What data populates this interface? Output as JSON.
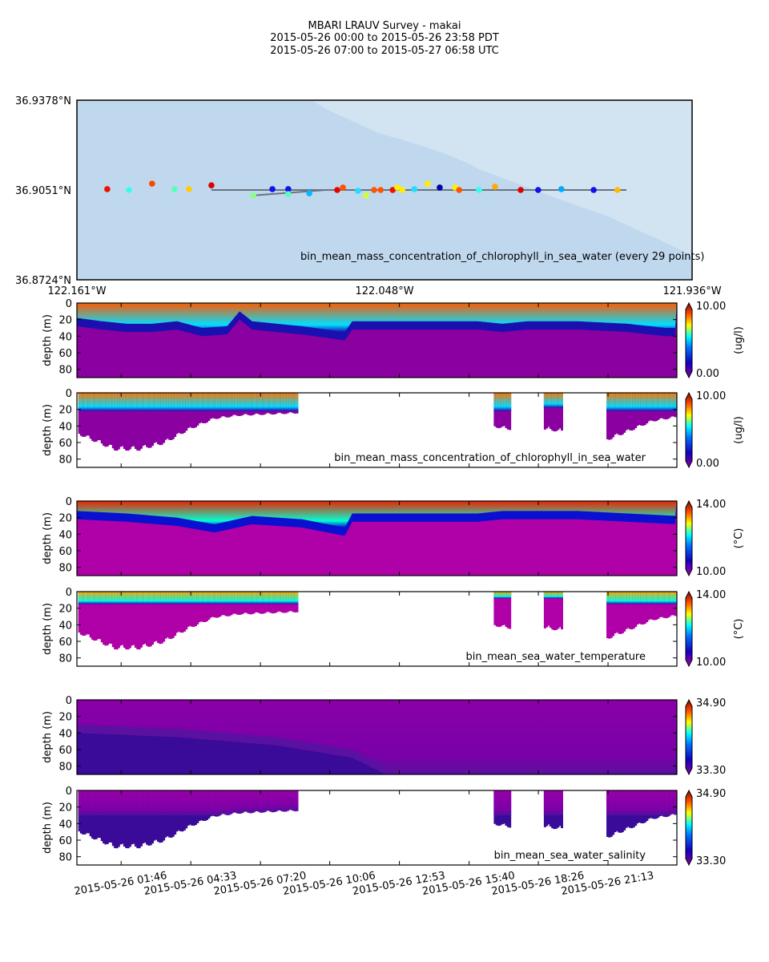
{
  "title": {
    "line1": "MBARI LRAUV Survey - makai",
    "line2": "2015-05-26 00:00  to  2015-05-26 23:58 PDT",
    "line3": "2015-05-26 07:00  to  2015-05-27 06:58 UTC"
  },
  "chart_data": [
    {
      "type": "scatter",
      "name": "map",
      "annotation": "bin_mean_mass_concentration_of_chlorophyll_in_sea_water (every 29 points)",
      "lat_ticks": [
        "36.9378°N",
        "36.9051°N",
        "36.8724°N"
      ],
      "lon_ticks": [
        "122.161°W",
        "122.048°W",
        "121.936°W"
      ],
      "lat_range": [
        36.8724,
        36.9378
      ],
      "lon_range": [
        -122.161,
        -121.936
      ],
      "track": [
        [
          [
            -122.1118,
            36.9051
          ],
          [
            -121.96,
            36.9051
          ]
        ],
        [
          [
            -122.0968,
            36.9031
          ],
          [
            -122.07,
            36.9051
          ]
        ]
      ],
      "points": [
        {
          "lon": -122.1499,
          "lat": 36.9054,
          "color": "#ee1100"
        },
        {
          "lon": -122.142,
          "lat": 36.9051,
          "color": "#33ffee"
        },
        {
          "lon": -122.1335,
          "lat": 36.9074,
          "color": "#ff4400"
        },
        {
          "lon": -122.1253,
          "lat": 36.9054,
          "color": "#55ffbb"
        },
        {
          "lon": -122.12,
          "lat": 36.9054,
          "color": "#ffcc00"
        },
        {
          "lon": -122.1118,
          "lat": 36.9068,
          "color": "#dd0000"
        },
        {
          "lon": -122.0965,
          "lat": 36.9031,
          "color": "#88ff88"
        },
        {
          "lon": -122.0895,
          "lat": 36.9054,
          "color": "#1111ee"
        },
        {
          "lon": -122.0837,
          "lat": 36.9054,
          "color": "#1111ee"
        },
        {
          "lon": -122.0837,
          "lat": 36.9036,
          "color": "#55ffbb"
        },
        {
          "lon": -122.076,
          "lat": 36.9039,
          "color": "#00bbff"
        },
        {
          "lon": -122.0658,
          "lat": 36.9051,
          "color": "#ee0000"
        },
        {
          "lon": -122.0637,
          "lat": 36.906,
          "color": "#ff5500"
        },
        {
          "lon": -122.0582,
          "lat": 36.9048,
          "color": "#22ddff"
        },
        {
          "lon": -122.0552,
          "lat": 36.9031,
          "color": "#ccff33"
        },
        {
          "lon": -122.0523,
          "lat": 36.9051,
          "color": "#ff5500"
        },
        {
          "lon": -122.0499,
          "lat": 36.9051,
          "color": "#ff5500"
        },
        {
          "lon": -122.0455,
          "lat": 36.9051,
          "color": "#ee1100"
        },
        {
          "lon": -122.0438,
          "lat": 36.906,
          "color": "#ffee00"
        },
        {
          "lon": -122.042,
          "lat": 36.9051,
          "color": "#ffee00"
        },
        {
          "lon": -122.0376,
          "lat": 36.9054,
          "color": "#22ddff"
        },
        {
          "lon": -122.0327,
          "lat": 36.9074,
          "color": "#ffee00"
        },
        {
          "lon": -122.0283,
          "lat": 36.906,
          "color": "#0000aa"
        },
        {
          "lon": -122.0227,
          "lat": 36.906,
          "color": "#ffee00"
        },
        {
          "lon": -122.0212,
          "lat": 36.9051,
          "color": "#ff5500"
        },
        {
          "lon": -122.0139,
          "lat": 36.9051,
          "color": "#33ffee"
        },
        {
          "lon": -122.0081,
          "lat": 36.9063,
          "color": "#ffaa00"
        },
        {
          "lon": -121.9987,
          "lat": 36.9051,
          "color": "#dd0000"
        },
        {
          "lon": -121.9923,
          "lat": 36.9051,
          "color": "#1111ee"
        },
        {
          "lon": -121.9838,
          "lat": 36.9054,
          "color": "#00aaff"
        },
        {
          "lon": -121.972,
          "lat": 36.9051,
          "color": "#1111ee"
        },
        {
          "lon": -121.9633,
          "lat": 36.9051,
          "color": "#ffbb00"
        }
      ]
    },
    {
      "type": "heatmap",
      "name": "chl-curtain",
      "ylabel": "depth (m)",
      "ylim": [
        90,
        0
      ],
      "yticks": [
        "0",
        "20",
        "40",
        "60",
        "80"
      ],
      "cbar_max": "10.00",
      "cbar_min": "0.00",
      "units": "(ug/l)",
      "annotation": "",
      "surface_color": "#ff5a00",
      "mid_color": "#00e0ff",
      "thermo_color": "#1a10b0",
      "deep_color": "#8a00a0",
      "layer_depth_h": [
        [
          0,
          18
        ],
        [
          1,
          22
        ],
        [
          2,
          25
        ],
        [
          3,
          25
        ],
        [
          4,
          22
        ],
        [
          5,
          30
        ],
        [
          6,
          28
        ],
        [
          6.5,
          10
        ],
        [
          7,
          22
        ],
        [
          9,
          28
        ],
        [
          10.7,
          35
        ],
        [
          11,
          22
        ],
        [
          13,
          22
        ],
        [
          16,
          22
        ],
        [
          17,
          25
        ],
        [
          18,
          22
        ],
        [
          20,
          22
        ],
        [
          22,
          25
        ],
        [
          23.5,
          30
        ],
        [
          24,
          30
        ]
      ]
    },
    {
      "type": "scatter",
      "name": "chl-profiles",
      "ylabel": "depth (m)",
      "ylim": [
        90,
        0
      ],
      "yticks": [
        "0",
        "20",
        "40",
        "60",
        "80"
      ],
      "cbar_max": "10.00",
      "cbar_min": "0.00",
      "units": "(ug/l)",
      "annotation": "bin_mean_mass_concentration_of_chlorophyll_in_sea_water",
      "surface_color": "#ff7a00",
      "mid_color": "#00e0ff",
      "thermo_color": "#1a10b0",
      "deep_color": "#8a00a0",
      "segments": [
        {
          "start_h": 0.1,
          "end_h": 8.85,
          "max_depth": [
            [
              0,
              50
            ],
            [
              1.5,
              70
            ],
            [
              2.5,
              70
            ],
            [
              3.5,
              62
            ],
            [
              4.5,
              45
            ],
            [
              5.5,
              32
            ],
            [
              6.5,
              28
            ],
            [
              8.85,
              25
            ]
          ],
          "layer": 22
        },
        {
          "start_h": 16.7,
          "end_h": 17.3,
          "max_depth": [
            [
              16.7,
              42
            ],
            [
              17.3,
              45
            ]
          ],
          "layer": 22
        },
        {
          "start_h": 18.7,
          "end_h": 19.4,
          "max_depth": [
            [
              18.7,
              45
            ],
            [
              19.4,
              48
            ]
          ],
          "layer": 18
        },
        {
          "start_h": 21.2,
          "end_h": 23.95,
          "max_depth": [
            [
              21.2,
              58
            ],
            [
              22,
              48
            ],
            [
              23,
              35
            ],
            [
              23.95,
              30
            ]
          ],
          "layer": 22
        }
      ]
    },
    {
      "type": "heatmap",
      "name": "temp-curtain",
      "ylabel": "depth (m)",
      "ylim": [
        90,
        0
      ],
      "yticks": [
        "0",
        "20",
        "40",
        "60",
        "80"
      ],
      "cbar_max": "14.00",
      "cbar_min": "10.00",
      "units": "(°C)",
      "annotation": "",
      "surface_color": "#ee2000",
      "mid_color": "#00ffd0",
      "thermo_color": "#0a10d0",
      "deep_color": "#b000a8",
      "layer_depth_h": [
        [
          0,
          12
        ],
        [
          2,
          15
        ],
        [
          4,
          20
        ],
        [
          5.5,
          28
        ],
        [
          7,
          18
        ],
        [
          9,
          22
        ],
        [
          10.7,
          32
        ],
        [
          11,
          15
        ],
        [
          16,
          15
        ],
        [
          17,
          12
        ],
        [
          20,
          12
        ],
        [
          22,
          15
        ],
        [
          24,
          18
        ]
      ]
    },
    {
      "type": "scatter",
      "name": "temp-profiles",
      "ylabel": "depth (m)",
      "ylim": [
        90,
        0
      ],
      "yticks": [
        "0",
        "20",
        "40",
        "60",
        "80"
      ],
      "cbar_max": "14.00",
      "cbar_min": "10.00",
      "units": "(°C)",
      "annotation": "bin_mean_sea_water_temperature",
      "surface_color": "#ffaa00",
      "mid_color": "#00ffe0",
      "thermo_color": "#1010c0",
      "deep_color": "#b000a8",
      "segments": [
        {
          "start_h": 0.1,
          "end_h": 8.85,
          "max_depth": [
            [
              0,
              50
            ],
            [
              1.5,
              70
            ],
            [
              2.5,
              70
            ],
            [
              3.5,
              62
            ],
            [
              4.5,
              45
            ],
            [
              5.5,
              32
            ],
            [
              6.5,
              28
            ],
            [
              8.85,
              25
            ]
          ],
          "layer": 15
        },
        {
          "start_h": 16.7,
          "end_h": 17.3,
          "max_depth": [
            [
              16.7,
              42
            ],
            [
              17.3,
              45
            ]
          ],
          "layer": 8
        },
        {
          "start_h": 18.7,
          "end_h": 19.4,
          "max_depth": [
            [
              18.7,
              45
            ],
            [
              19.4,
              48
            ]
          ],
          "layer": 8
        },
        {
          "start_h": 21.2,
          "end_h": 23.95,
          "max_depth": [
            [
              21.2,
              58
            ],
            [
              22,
              48
            ],
            [
              23,
              35
            ],
            [
              23.95,
              30
            ]
          ],
          "layer": 15
        }
      ]
    },
    {
      "type": "heatmap",
      "name": "sal-curtain",
      "ylabel": "depth (m)",
      "ylim": [
        90,
        0
      ],
      "yticks": [
        "0",
        "20",
        "40",
        "60",
        "80"
      ],
      "cbar_max": "34.90",
      "cbar_min": "33.30",
      "units": "",
      "annotation": "",
      "surface_color": "#8a00a8",
      "mid_color": "#7a00a8",
      "thermo_color": "#5a10a0",
      "deep_color": "#3a0a98",
      "layer_depth_h": [
        [
          0,
          30
        ],
        [
          4,
          35
        ],
        [
          8,
          45
        ],
        [
          11,
          60
        ],
        [
          13,
          90
        ],
        [
          24,
          90
        ]
      ]
    },
    {
      "type": "scatter",
      "name": "sal-profiles",
      "ylabel": "depth (m)",
      "ylim": [
        90,
        0
      ],
      "yticks": [
        "0",
        "20",
        "40",
        "60",
        "80"
      ],
      "cbar_max": "34.90",
      "cbar_min": "33.30",
      "units": "",
      "annotation": "bin_mean_sea_water_salinity",
      "surface_color": "#9a00a8",
      "mid_color": "#8000a8",
      "thermo_color": "#5010a0",
      "deep_color": "#3a0a98",
      "segments": [
        {
          "start_h": 0.1,
          "end_h": 8.85,
          "max_depth": [
            [
              0,
              50
            ],
            [
              1.5,
              70
            ],
            [
              2.5,
              70
            ],
            [
              3.5,
              62
            ],
            [
              4.5,
              45
            ],
            [
              5.5,
              32
            ],
            [
              6.5,
              28
            ],
            [
              8.85,
              25
            ]
          ],
          "layer": 30
        },
        {
          "start_h": 16.7,
          "end_h": 17.3,
          "max_depth": [
            [
              16.7,
              42
            ],
            [
              17.3,
              45
            ]
          ],
          "layer": 30
        },
        {
          "start_h": 18.7,
          "end_h": 19.4,
          "max_depth": [
            [
              18.7,
              45
            ],
            [
              19.4,
              48
            ]
          ],
          "layer": 30
        },
        {
          "start_h": 21.2,
          "end_h": 23.95,
          "max_depth": [
            [
              21.2,
              58
            ],
            [
              22,
              48
            ],
            [
              23,
              35
            ],
            [
              23.95,
              30
            ]
          ],
          "layer": 30
        }
      ]
    }
  ],
  "time_axis": {
    "range_hours": [
      0,
      23.967
    ],
    "ticks": [
      {
        "h": 1.767,
        "label": "2015-05-26 01:46"
      },
      {
        "h": 4.55,
        "label": "2015-05-26 04:33"
      },
      {
        "h": 7.333,
        "label": "2015-05-26 07:20"
      },
      {
        "h": 10.1,
        "label": "2015-05-26 10:06"
      },
      {
        "h": 12.883,
        "label": "2015-05-26 12:53"
      },
      {
        "h": 15.667,
        "label": "2015-05-26 15:40"
      },
      {
        "h": 18.433,
        "label": "2015-05-26 18:26"
      },
      {
        "h": 21.217,
        "label": "2015-05-26 21:13"
      }
    ]
  },
  "colors": {
    "map_water": "#c0d8ee",
    "map_land": "#d0e1f0",
    "track": "#6a7480"
  },
  "units_temp_c": "(°C)"
}
